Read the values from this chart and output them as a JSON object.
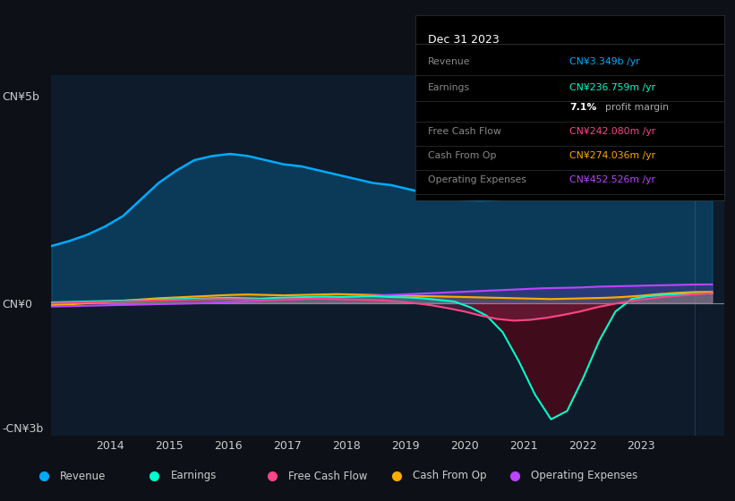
{
  "bg_color": "#0d1117",
  "plot_bg_color": "#0d1b2a",
  "x_ticks": [
    "2014",
    "2015",
    "2016",
    "2017",
    "2018",
    "2019",
    "2020",
    "2021",
    "2022",
    "2023"
  ],
  "legend_items": [
    {
      "label": "Revenue",
      "color": "#00aaff"
    },
    {
      "label": "Earnings",
      "color": "#00ffcc"
    },
    {
      "label": "Free Cash Flow",
      "color": "#ff4488"
    },
    {
      "label": "Cash From Op",
      "color": "#ffaa00"
    },
    {
      "label": "Operating Expenses",
      "color": "#bb44ff"
    }
  ],
  "revenue": [
    1.38,
    1.5,
    1.65,
    1.85,
    2.1,
    2.5,
    2.9,
    3.2,
    3.45,
    3.55,
    3.6,
    3.55,
    3.45,
    3.35,
    3.3,
    3.2,
    3.1,
    3.0,
    2.9,
    2.85,
    2.75,
    2.65,
    2.55,
    2.5,
    2.48,
    2.5,
    2.55,
    2.6,
    2.65,
    2.7,
    2.78,
    2.85,
    2.95,
    3.05,
    3.15,
    3.25,
    3.32,
    3.349
  ],
  "earnings": [
    0.02,
    0.03,
    0.04,
    0.05,
    0.06,
    0.07,
    0.08,
    0.09,
    0.1,
    0.11,
    0.12,
    0.13,
    0.12,
    0.11,
    0.13,
    0.14,
    0.15,
    0.16,
    0.15,
    0.16,
    0.17,
    0.15,
    0.14,
    0.12,
    0.08,
    0.04,
    -0.1,
    -0.3,
    -0.7,
    -1.4,
    -2.2,
    -2.8,
    -2.6,
    -1.8,
    -0.9,
    -0.2,
    0.1,
    0.17,
    0.2,
    0.22,
    0.23,
    0.237
  ],
  "free_cash_flow": [
    0.0,
    0.01,
    0.02,
    0.03,
    0.04,
    0.05,
    0.06,
    0.07,
    0.08,
    0.09,
    0.1,
    0.1,
    0.09,
    0.08,
    0.09,
    0.1,
    0.11,
    0.1,
    0.09,
    0.08,
    0.07,
    0.04,
    0.0,
    -0.05,
    -0.12,
    -0.2,
    -0.3,
    -0.38,
    -0.42,
    -0.4,
    -0.35,
    -0.28,
    -0.2,
    -0.1,
    -0.02,
    0.05,
    0.1,
    0.15,
    0.18,
    0.22,
    0.242
  ],
  "cash_from_op": [
    -0.05,
    -0.03,
    0.0,
    0.03,
    0.06,
    0.09,
    0.12,
    0.14,
    0.16,
    0.18,
    0.2,
    0.21,
    0.2,
    0.19,
    0.2,
    0.21,
    0.22,
    0.21,
    0.2,
    0.19,
    0.18,
    0.17,
    0.16,
    0.15,
    0.14,
    0.13,
    0.12,
    0.11,
    0.1,
    0.11,
    0.12,
    0.13,
    0.15,
    0.18,
    0.22,
    0.25,
    0.27,
    0.274
  ],
  "operating_expenses": [
    -0.08,
    -0.07,
    -0.06,
    -0.05,
    -0.04,
    -0.03,
    -0.02,
    -0.01,
    0.0,
    0.02,
    0.04,
    0.06,
    0.08,
    0.1,
    0.12,
    0.14,
    0.16,
    0.18,
    0.2,
    0.22,
    0.24,
    0.26,
    0.28,
    0.3,
    0.32,
    0.34,
    0.36,
    0.37,
    0.38,
    0.4,
    0.41,
    0.42,
    0.43,
    0.44,
    0.45,
    0.453
  ]
}
